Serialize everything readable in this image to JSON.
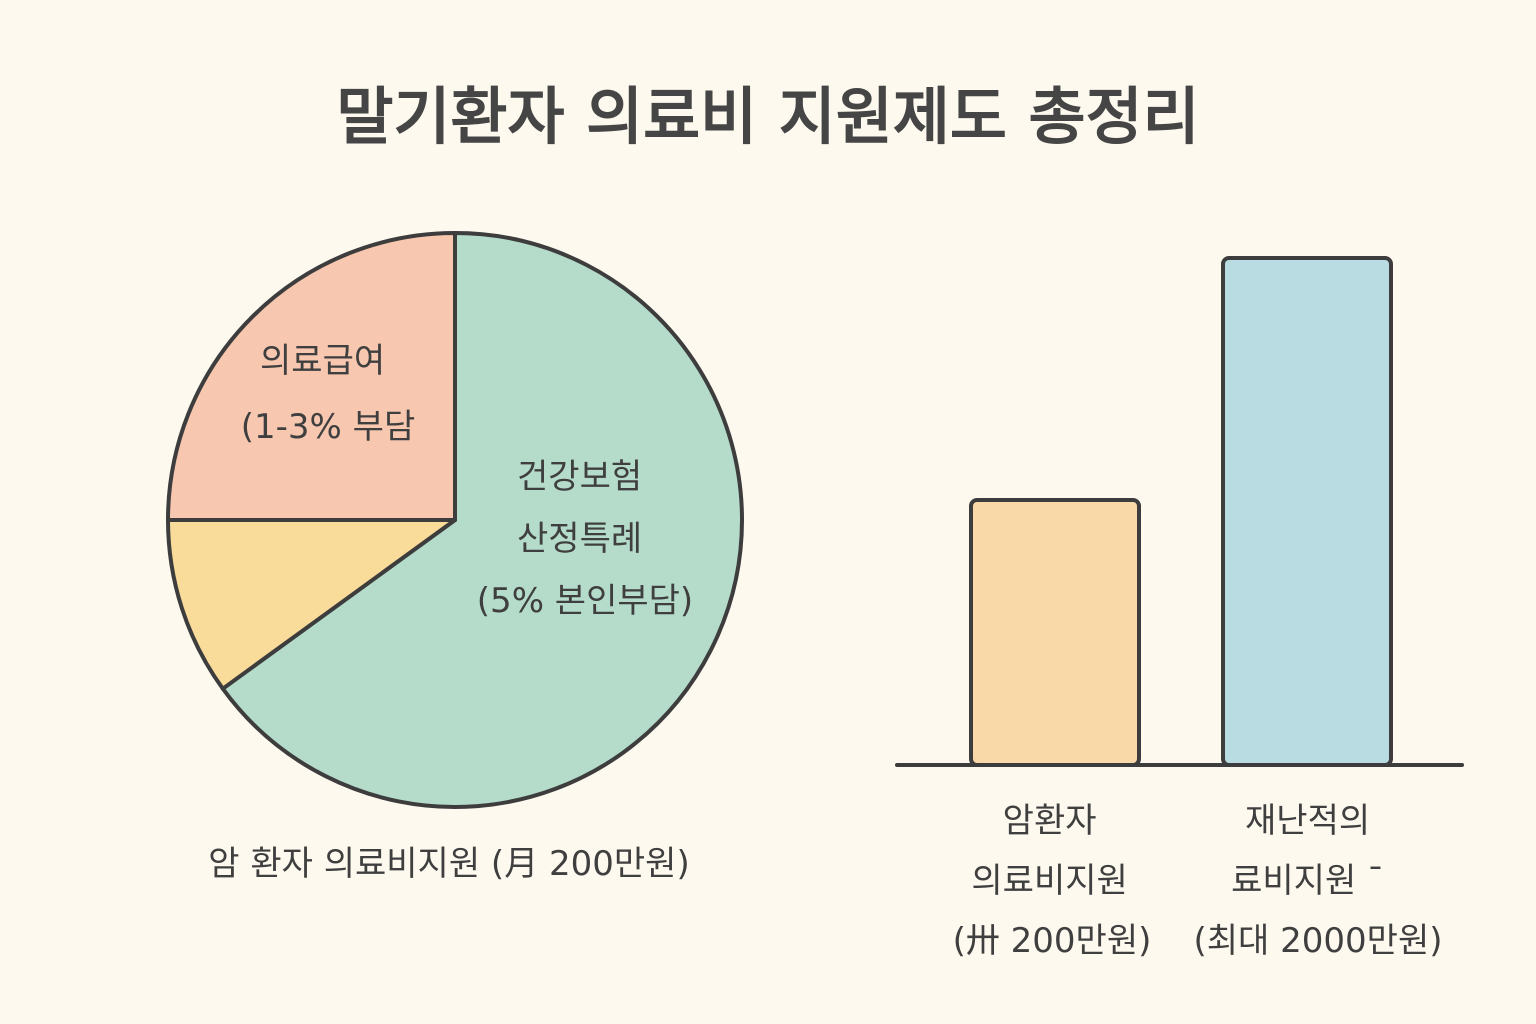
{
  "title": "말기환자 의료비 지원제도 총정리",
  "colors": {
    "background": "#fdf9ef",
    "outline": "#3d3d3d",
    "pie_health_insurance": "#b5dccb",
    "pie_medical_aid": "#f7c7b0",
    "pie_cancer_support": "#f9dc9a",
    "bar_cancer_support": "#f9d9a8",
    "bar_catastrophic": "#b9dbe2"
  },
  "chart_data": [
    {
      "type": "pie",
      "slices": [
        {
          "lines": [
            "건강보험",
            "산정특례",
            "(5% 본인부담)"
          ],
          "value": 65
        },
        {
          "lines": [
            "의료급여",
            "(1-3% 부담"
          ],
          "value": 25
        },
        {
          "lines": [],
          "value": 10
        }
      ],
      "caption": "암 환자 의료비지원 (月 200만원)"
    },
    {
      "type": "bar",
      "categories": [
        {
          "lines": [
            "암환자",
            "의료비지원",
            "(卅 200만원)"
          ]
        },
        {
          "lines": [
            "재난적의",
            "료비지원 ˉ",
            "(최대 2000만원)"
          ]
        }
      ],
      "values": [
        200,
        2000
      ],
      "axis": "nonlinear (visual heights not proportional)"
    }
  ]
}
